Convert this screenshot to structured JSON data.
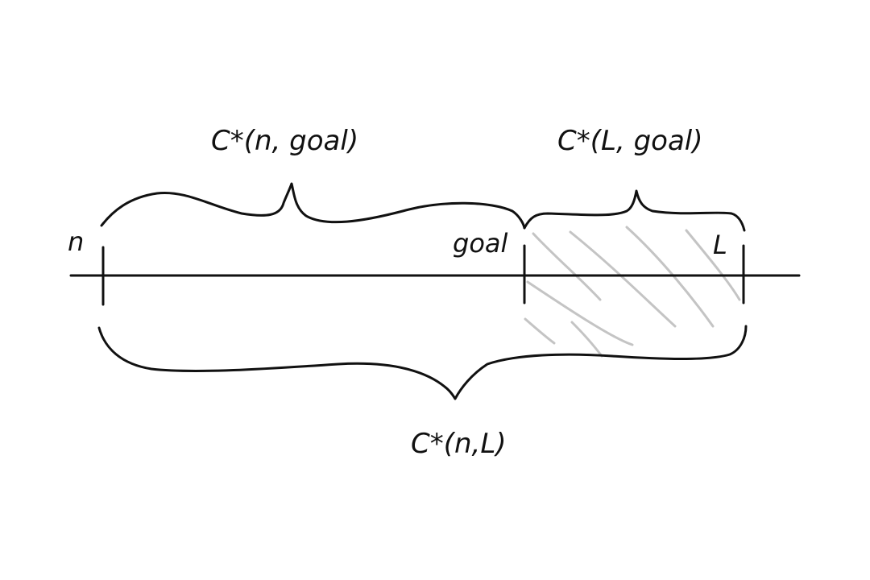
{
  "diagram": {
    "labels": {
      "cost_n_goal": "C*(n, goal)",
      "cost_L_goal": "C*(L, goal)",
      "cost_n_L": "C*(n,L)",
      "point_n": "n",
      "point_goal": "goal",
      "point_L": "L"
    },
    "colors": {
      "ink": "#111111",
      "hatch": "#c4c4c4",
      "background": "#ffffff"
    }
  }
}
